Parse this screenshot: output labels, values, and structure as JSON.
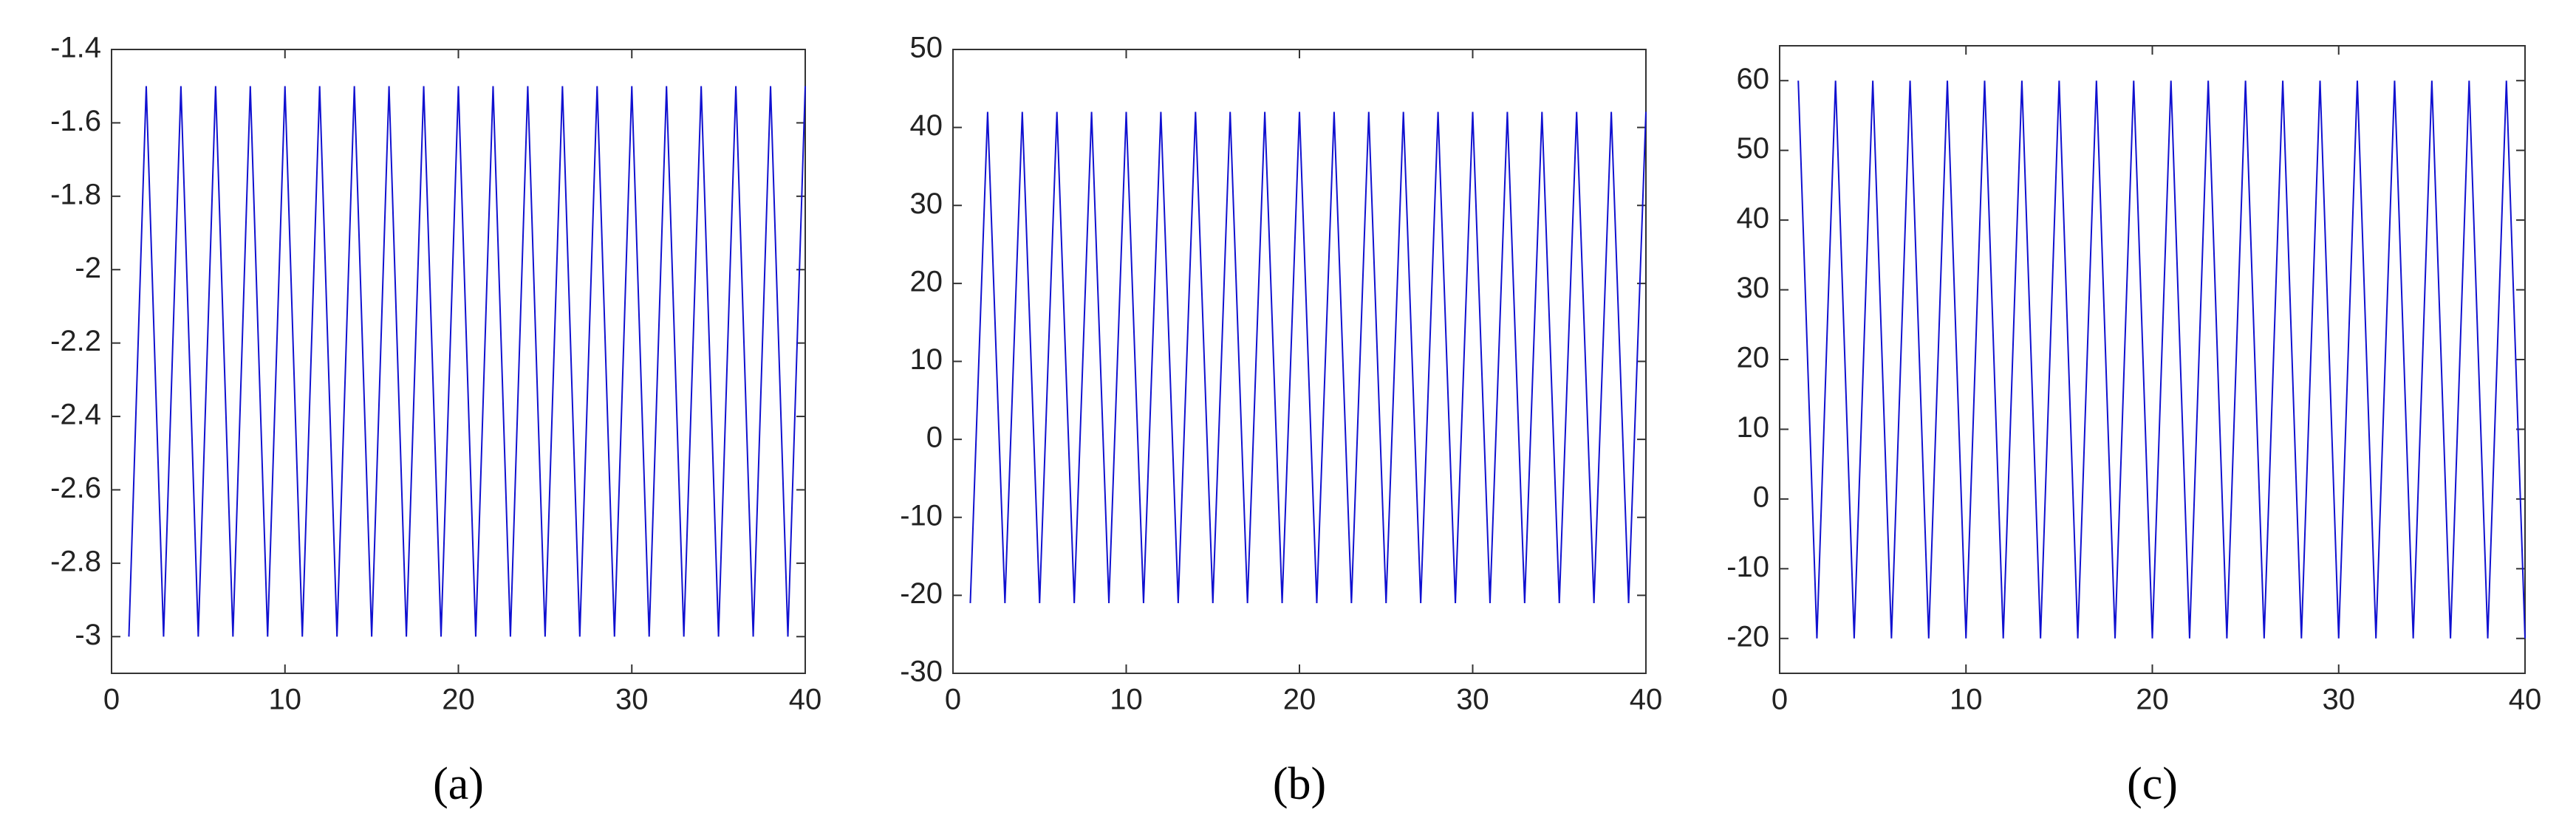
{
  "chart_data": [
    {
      "type": "line",
      "caption": "(a)",
      "color": "#1010d0",
      "x": [
        1,
        2,
        3,
        4,
        5,
        6,
        7,
        8,
        9,
        10,
        11,
        12,
        13,
        14,
        15,
        16,
        17,
        18,
        19,
        20,
        21,
        22,
        23,
        24,
        25,
        26,
        27,
        28,
        29,
        30,
        31,
        32,
        33,
        34,
        35,
        36,
        37,
        38,
        39,
        40
      ],
      "values": [
        -3,
        -1.5,
        -3,
        -1.5,
        -3,
        -1.5,
        -3,
        -1.5,
        -3,
        -1.5,
        -3,
        -1.5,
        -3,
        -1.5,
        -3,
        -1.5,
        -3,
        -1.5,
        -3,
        -1.5,
        -3,
        -1.5,
        -3,
        -1.5,
        -3,
        -1.5,
        -3,
        -1.5,
        -3,
        -1.5,
        -3,
        -1.5,
        -3,
        -1.5,
        -3,
        -1.5,
        -3,
        -1.5,
        -3,
        -1.5
      ],
      "xlim": [
        0,
        40
      ],
      "xticks": [
        0,
        10,
        20,
        30,
        40
      ],
      "ylim": [
        -3.1,
        -1.4
      ],
      "yticks": [
        -3,
        -2.8,
        -2.6,
        -2.4,
        -2.2,
        -2,
        -1.8,
        -1.6,
        -1.4
      ]
    },
    {
      "type": "line",
      "caption": "(b)",
      "color": "#1010d0",
      "x": [
        1,
        2,
        3,
        4,
        5,
        6,
        7,
        8,
        9,
        10,
        11,
        12,
        13,
        14,
        15,
        16,
        17,
        18,
        19,
        20,
        21,
        22,
        23,
        24,
        25,
        26,
        27,
        28,
        29,
        30,
        31,
        32,
        33,
        34,
        35,
        36,
        37,
        38,
        39,
        40
      ],
      "values": [
        -21,
        42,
        -21,
        42,
        -21,
        42,
        -21,
        42,
        -21,
        42,
        -21,
        42,
        -21,
        42,
        -21,
        42,
        -21,
        42,
        -21,
        42,
        -21,
        42,
        -21,
        42,
        -21,
        42,
        -21,
        42,
        -21,
        42,
        -21,
        42,
        -21,
        42,
        -21,
        42,
        -21,
        42,
        -21,
        42
      ],
      "xlim": [
        0,
        40
      ],
      "xticks": [
        0,
        10,
        20,
        30,
        40
      ],
      "ylim": [
        -30,
        50
      ],
      "yticks": [
        -30,
        -20,
        -10,
        0,
        10,
        20,
        30,
        40,
        50
      ]
    },
    {
      "type": "line",
      "caption": "(c)",
      "color": "#1010d0",
      "x": [
        1,
        2,
        3,
        4,
        5,
        6,
        7,
        8,
        9,
        10,
        11,
        12,
        13,
        14,
        15,
        16,
        17,
        18,
        19,
        20,
        21,
        22,
        23,
        24,
        25,
        26,
        27,
        28,
        29,
        30,
        31,
        32,
        33,
        34,
        35,
        36,
        37,
        38,
        39,
        40
      ],
      "values": [
        60,
        -20,
        60,
        -20,
        60,
        -20,
        60,
        -20,
        60,
        -20,
        60,
        -20,
        60,
        -20,
        60,
        -20,
        60,
        -20,
        60,
        -20,
        60,
        -20,
        60,
        -20,
        60,
        -20,
        60,
        -20,
        60,
        -20,
        60,
        -20,
        60,
        -20,
        60,
        -20,
        60,
        -20,
        60,
        -20
      ],
      "xlim": [
        0,
        40
      ],
      "xticks": [
        0,
        10,
        20,
        30,
        40
      ],
      "ylim": [
        -25,
        65
      ],
      "yticks": [
        -20,
        -10,
        0,
        10,
        20,
        30,
        40,
        50,
        60
      ]
    }
  ]
}
